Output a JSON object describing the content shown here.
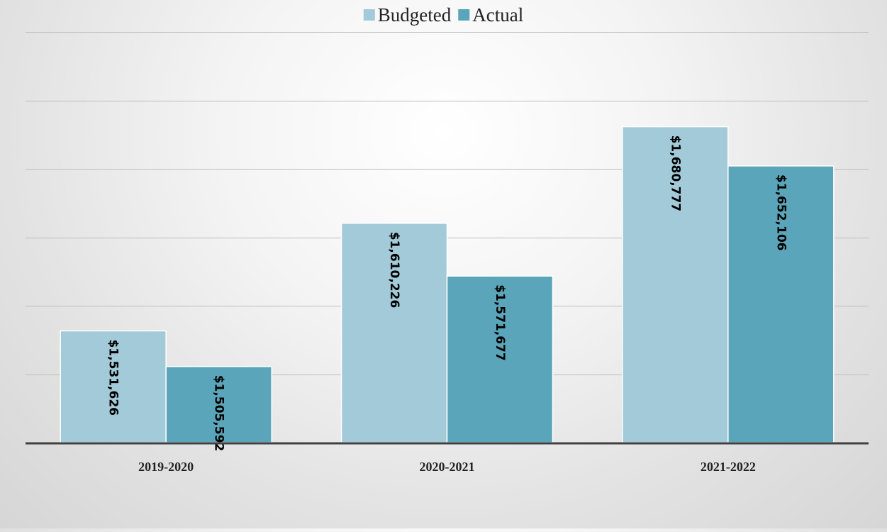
{
  "chart_data": {
    "type": "bar",
    "title": "",
    "xlabel": "",
    "ylabel": "",
    "categories": [
      "2019-2020",
      "2020-2021",
      "2021-2022"
    ],
    "series": [
      {
        "name": "Budgeted",
        "color": "#a2cad9",
        "values": [
          1531626,
          1610226,
          1680777
        ],
        "labels": [
          "$1,531,626",
          "$1,610,226",
          "$1,680,777"
        ]
      },
      {
        "name": "Actual",
        "color": "#5aa5b9",
        "values": [
          1505592,
          1571677,
          1652106
        ],
        "labels": [
          "$1,505,592",
          "$1,571,677",
          "$1,652,106"
        ]
      }
    ],
    "ylim": [
      1450000,
      1750000
    ],
    "gridlines": true,
    "legend_position": "top-center",
    "axis_color": "#404040"
  }
}
